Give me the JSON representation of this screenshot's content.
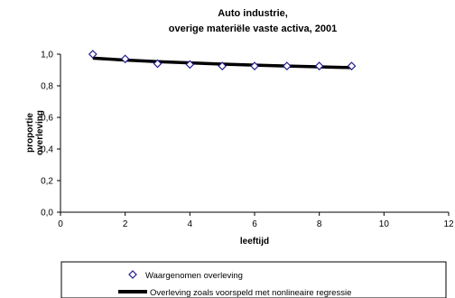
{
  "chart_data": {
    "type": "scatter",
    "title_lines": [
      "Auto industrie,",
      "overige materiële vaste activa, 2001"
    ],
    "xlabel": "leeftijd",
    "ylabel_lines": [
      "proportie",
      "overleving"
    ],
    "xlim": [
      0,
      12
    ],
    "ylim": [
      0,
      1
    ],
    "xticks": [
      "0",
      "2",
      "4",
      "6",
      "8",
      "10",
      "12"
    ],
    "yticks": [
      "0,0",
      "0,2",
      "0,4",
      "0,6",
      "0,8",
      "1,0"
    ],
    "grid": false,
    "legend_position": "bottom",
    "series": [
      {
        "name": "Waargenomen overleving",
        "kind": "markers",
        "marker": "diamond",
        "color": "#1f1a8c",
        "x": [
          1,
          2,
          3,
          4,
          5,
          6,
          7,
          8,
          9
        ],
        "y": [
          1.0,
          0.97,
          0.94,
          0.935,
          0.925,
          0.925,
          0.925,
          0.925,
          0.925
        ]
      },
      {
        "name": "Overleving zoals voorspeld met nonlineaire regressie",
        "kind": "line",
        "color": "#000000",
        "x": [
          1,
          2,
          3,
          4,
          5,
          6,
          7,
          8,
          9
        ],
        "y": [
          0.975,
          0.963,
          0.953,
          0.945,
          0.937,
          0.931,
          0.925,
          0.92,
          0.915
        ]
      }
    ]
  }
}
